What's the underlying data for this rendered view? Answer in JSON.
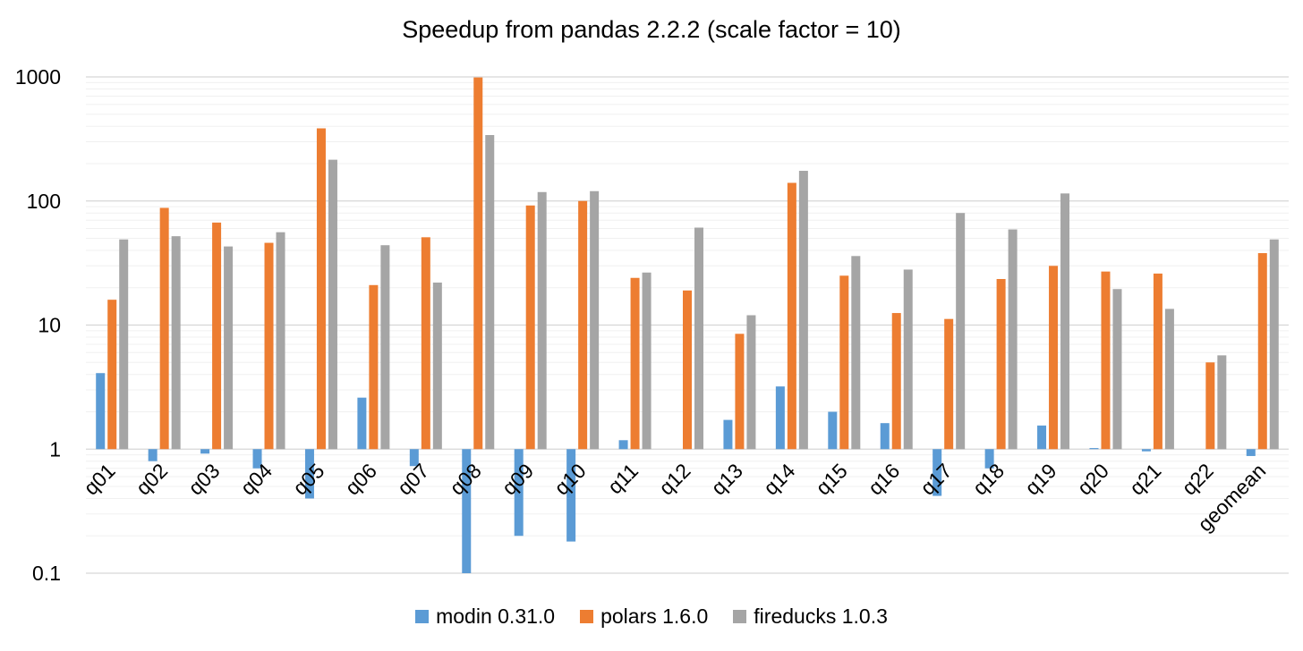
{
  "chart_data": {
    "type": "bar",
    "title": "Speedup from pandas 2.2.2 (scale factor = 10)",
    "xlabel": "",
    "ylabel": "",
    "yscale": "log",
    "ylim": [
      0.1,
      1000
    ],
    "yticks": [
      0.1,
      1,
      10,
      100,
      1000
    ],
    "ytick_labels": [
      "0.1",
      "1",
      "10",
      "100",
      "1000"
    ],
    "grid": true,
    "legend_position": "bottom",
    "categories": [
      "q01",
      "q02",
      "q03",
      "q04",
      "q05",
      "q06",
      "q07",
      "q08",
      "q09",
      "q10",
      "q11",
      "q12",
      "q13",
      "q14",
      "q15",
      "q16",
      "q17",
      "q18",
      "q19",
      "q20",
      "q21",
      "q22",
      "geomean"
    ],
    "series": [
      {
        "name": "modin 0.31.0",
        "color": "#5B9BD5",
        "values": [
          4.1,
          0.8,
          0.92,
          0.7,
          0.4,
          2.6,
          0.73,
          0.1,
          0.2,
          0.18,
          1.18,
          null,
          1.72,
          3.2,
          2.0,
          1.62,
          0.42,
          0.7,
          1.55,
          1.02,
          0.96,
          null,
          0.88
        ]
      },
      {
        "name": "polars 1.6.0",
        "color": "#ED7D31",
        "values": [
          16,
          88,
          67,
          46,
          385,
          21,
          51,
          990,
          92,
          100,
          24,
          19,
          8.5,
          140,
          25,
          12.5,
          11.2,
          23.5,
          30,
          27,
          26,
          5,
          38
        ]
      },
      {
        "name": "fireducks 1.0.3",
        "color": "#A5A5A5",
        "values": [
          49,
          52,
          43,
          56,
          215,
          44,
          22,
          340,
          118,
          120,
          26.5,
          61,
          12,
          175,
          36,
          28,
          80,
          59,
          115,
          19.5,
          13.5,
          5.7,
          49
        ]
      }
    ]
  }
}
